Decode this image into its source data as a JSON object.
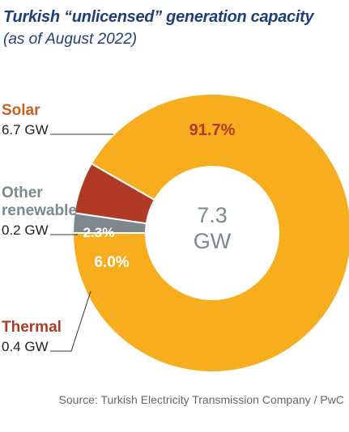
{
  "title": "Turkish “unlicensed” generation capacity",
  "subtitle": "(as of August 2022)",
  "source": "Source: Turkish Electricity Transmission Company / PwC",
  "chart_data": {
    "type": "pie",
    "donut": true,
    "center_label": {
      "value": "7.3",
      "unit": "GW"
    },
    "slices": [
      {
        "name": "Solar",
        "value_label": "6.7 GW",
        "value": 6.7,
        "percent": 91.7,
        "percent_label": "91.7%",
        "color": "#f6ad1e"
      },
      {
        "name": "Other renewable",
        "name_lines": [
          "Other",
          "renewable"
        ],
        "value_label": "0.2 GW",
        "value": 0.2,
        "percent": 2.3,
        "percent_label": "2.3%",
        "color": "#7d888d"
      },
      {
        "name": "Thermal",
        "value_label": "0.4 GW",
        "value": 0.4,
        "percent": 6.0,
        "percent_label": "6.0%",
        "color": "#b03a26"
      }
    ],
    "label_colors": {
      "Solar": "#c7601d",
      "Other renewable": "#7d888d",
      "Thermal": "#b03a26"
    }
  }
}
